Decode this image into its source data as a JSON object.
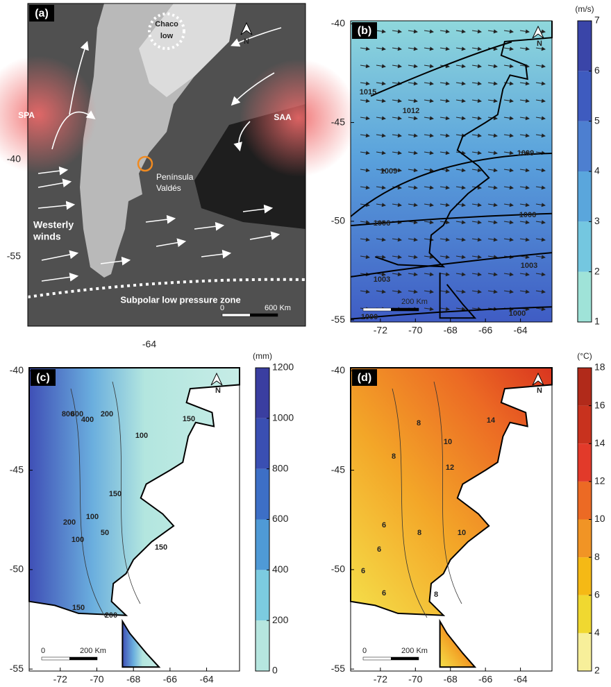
{
  "panel_a": {
    "label": "(a)",
    "north": "N",
    "chaco": [
      "Chaco",
      "low"
    ],
    "spa": "SPA",
    "saa": "SAA",
    "place": [
      "Península",
      "Valdés"
    ],
    "winds": [
      "Westerly",
      "winds"
    ],
    "zone": "Subpolar low pressure zone",
    "scale": [
      "0",
      "600 Km"
    ],
    "yticks": [
      -40,
      -55
    ],
    "xticks": [
      -64
    ]
  },
  "panel_b": {
    "label": "(b)",
    "north": "N",
    "unit": "(m/s)",
    "colorbar_ticks": [
      1,
      2,
      3,
      4,
      5,
      6,
      7
    ],
    "isobars": [
      1015,
      1012,
      1009,
      1009,
      1006,
      1006,
      1003,
      1003,
      1000,
      1000
    ],
    "scale": "200 Km",
    "yticks": [
      -40,
      -45,
      -50,
      -55
    ],
    "xticks": [
      -72,
      -70,
      -68,
      -66,
      -64
    ]
  },
  "panel_c": {
    "label": "(c)",
    "north": "N",
    "unit": "(mm)",
    "colorbar_ticks": [
      0,
      200,
      400,
      600,
      800,
      1000,
      1200
    ],
    "contours": [
      800,
      600,
      400,
      200,
      150,
      100,
      150,
      100,
      200,
      100,
      50,
      150,
      150,
      200
    ],
    "scale": [
      "0",
      "200 Km"
    ],
    "yticks": [
      -40,
      -45,
      -50,
      -55
    ],
    "xticks": [
      -72,
      -70,
      -68,
      -66,
      -64
    ]
  },
  "panel_d": {
    "label": "(d)",
    "north": "N",
    "unit": "(°C)",
    "colorbar_ticks": [
      2,
      4,
      6,
      8,
      10,
      12,
      14,
      16,
      18
    ],
    "contours": [
      8,
      14,
      10,
      8,
      12,
      6,
      8,
      10,
      6,
      6,
      8,
      6
    ],
    "scale": [
      "0",
      "200 Km"
    ],
    "yticks": [
      -40,
      -45,
      -50,
      -55
    ],
    "xticks": [
      -72,
      -70,
      -68,
      -66,
      -64
    ]
  }
}
